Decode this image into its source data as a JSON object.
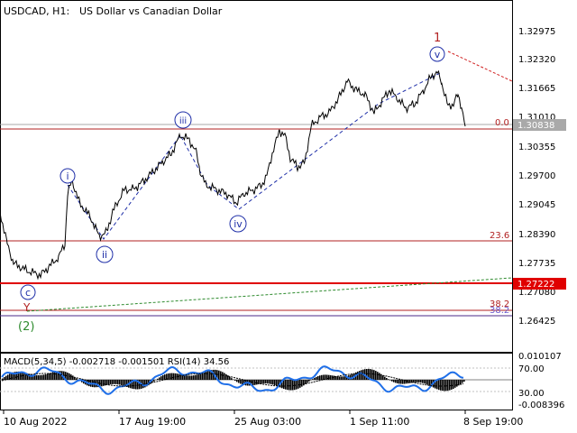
{
  "header": {
    "symbol_timeframe": "USDCAD, H1:",
    "description": "US Dollar vs Canadian Dollar"
  },
  "price_axis": {
    "labels": [
      "1.32975",
      "1.32320",
      "1.31665",
      "1.31010",
      "1.30355",
      "1.29700",
      "1.29045",
      "1.28390",
      "1.27735",
      "1.27080",
      "1.26425"
    ],
    "current_price": "1.30838",
    "support_level": "1.27222"
  },
  "time_axis": {
    "labels": [
      "10 Aug 2022",
      "17 Aug 19:00",
      "25 Aug 03:00",
      "1 Sep 11:00",
      "8 Sep 19:00"
    ]
  },
  "fibonacci": {
    "levels": [
      "0.0",
      "23.6",
      "38.2",
      "38.2"
    ]
  },
  "wave_labels": {
    "major": [
      "1",
      "(2)",
      "Y"
    ],
    "minor": [
      "c",
      "i",
      "ii",
      "iii",
      "iv",
      "v"
    ]
  },
  "indicator": {
    "title": "MACD(5,34,5) -0.002718 -0.001501 RSI(14) 34.56",
    "axis_labels": [
      "0.010107",
      "70.00",
      "30.00",
      "-0.008396"
    ]
  },
  "colors": {
    "fib_line": "#b22222",
    "support_line": "#e00000",
    "price_line": "#000000",
    "wave_circle": "#1f2fa8",
    "wave_1": "#b22222",
    "wave_2": "#2e8b2e",
    "rsi_line": "#1f6fe8",
    "grey_line": "#a9a9a9"
  }
}
